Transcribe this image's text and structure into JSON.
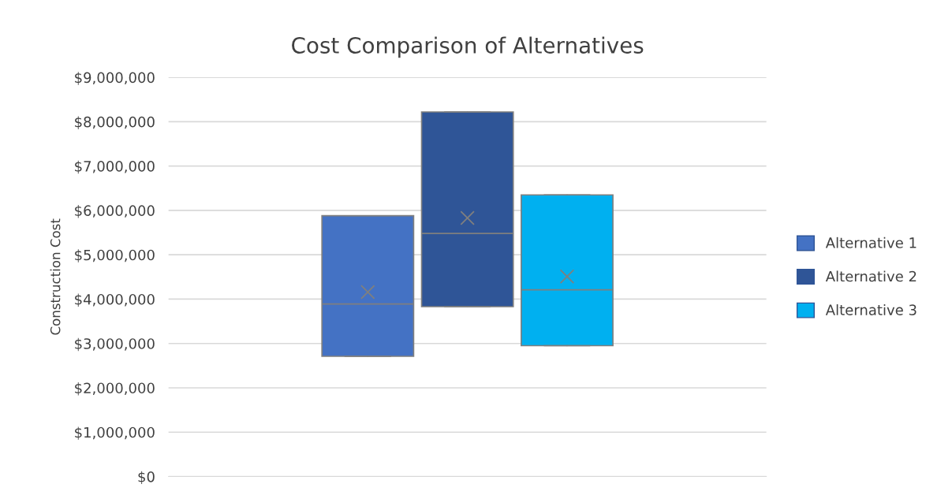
{
  "chart_data": {
    "type": "box",
    "title": "Cost Comparison of Alternatives",
    "ylabel": "Construction Cost",
    "categories": [
      null
    ],
    "series": [
      {
        "name": "Alternative 1",
        "color": "#4472c4",
        "boxes": [
          {
            "low": 2710000,
            "q1": 2710000,
            "median": 3890000,
            "q3": 5880000,
            "high": 5880000,
            "mean": 4160000
          }
        ]
      },
      {
        "name": "Alternative 2",
        "color": "#2f5597",
        "boxes": [
          {
            "low": 3830000,
            "q1": 3830000,
            "median": 5480000,
            "q3": 8220000,
            "high": 8220000,
            "mean": 5830000
          }
        ]
      },
      {
        "name": "Alternative 3",
        "color": "#00b0f0",
        "boxes": [
          {
            "low": 2950000,
            "q1": 2950000,
            "median": 4210000,
            "q3": 6350000,
            "high": 6350000,
            "mean": 4510000
          }
        ]
      }
    ],
    "ylim": [
      0,
      9000000
    ],
    "yticks": [
      {
        "value": 0,
        "label": "$0"
      },
      {
        "value": 1000000,
        "label": "$1,000,000"
      },
      {
        "value": 2000000,
        "label": "$2,000,000"
      },
      {
        "value": 3000000,
        "label": "$3,000,000"
      },
      {
        "value": 4000000,
        "label": "$4,000,000"
      },
      {
        "value": 5000000,
        "label": "$5,000,000"
      },
      {
        "value": 6000000,
        "label": "$6,000,000"
      },
      {
        "value": 7000000,
        "label": "$7,000,000"
      },
      {
        "value": 8000000,
        "label": "$8,000,000"
      },
      {
        "value": 9000000,
        "label": "$9,000,000"
      }
    ],
    "grid": "y",
    "legend": "right",
    "marker": "cross"
  }
}
